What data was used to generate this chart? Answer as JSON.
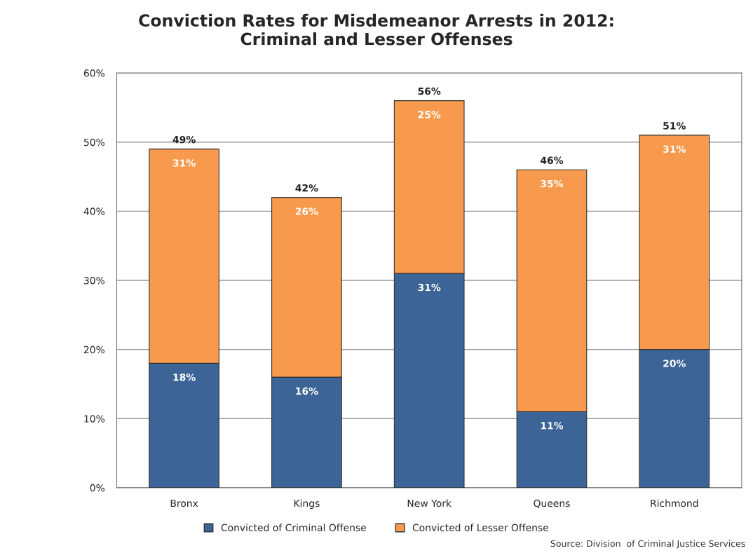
{
  "chart_data": {
    "type": "bar",
    "title": "Conviction Rates for Misdemeanor Arrests in 2012:\nCriminal and Lesser Offenses",
    "categories": [
      "Bronx",
      "Kings",
      "New York",
      "Queens",
      "Richmond"
    ],
    "stacked": true,
    "series": [
      {
        "name": "Convicted of Criminal Offense",
        "color": "#3c6496",
        "values": [
          18,
          16,
          31,
          11,
          20
        ],
        "value_labels": [
          "18%",
          "16%",
          "31%",
          "11%",
          "20%"
        ]
      },
      {
        "name": "Convicted of Lesser Offense",
        "color": "#f79a4d",
        "values": [
          31,
          26,
          25,
          35,
          31
        ],
        "value_labels": [
          "31%",
          "26%",
          "25%",
          "35%",
          "31%"
        ]
      }
    ],
    "totals": [
      "49%",
      "42%",
      "56%",
      "46%",
      "51%"
    ],
    "ylim": [
      0,
      60
    ],
    "yticks": [
      {
        "value": 0,
        "label": "0%"
      },
      {
        "value": 10,
        "label": "10%"
      },
      {
        "value": 20,
        "label": "20%"
      },
      {
        "value": 30,
        "label": "30%"
      },
      {
        "value": 40,
        "label": "40%"
      },
      {
        "value": 50,
        "label": "50%"
      },
      {
        "value": 60,
        "label": "60%"
      }
    ],
    "grid": "y",
    "legend": "bottom",
    "annotations": [
      "Source: Division  of Criminal Justice Services"
    ]
  }
}
